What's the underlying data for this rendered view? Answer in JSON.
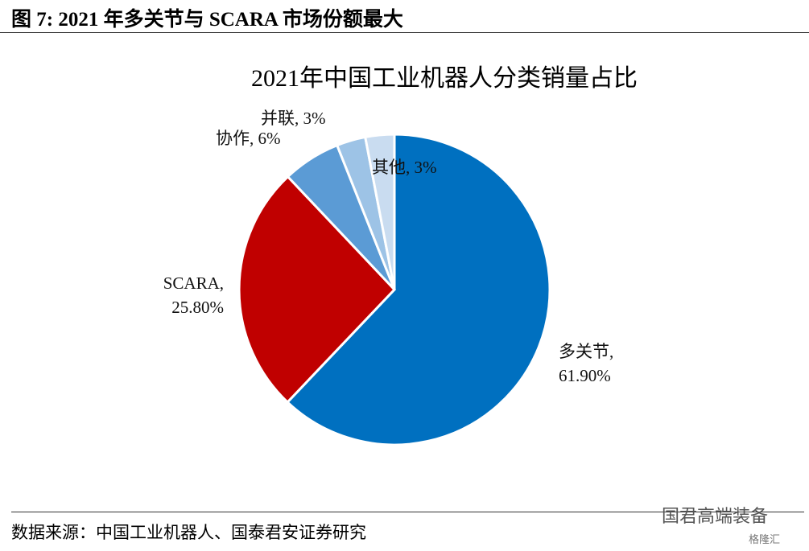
{
  "figure_title": "图 7:  2021 年多关节与 SCARA 市场份额最大",
  "source": "数据来源：中国工业机器人、国泰君安证券研究",
  "watermark": "国君高端装备",
  "watermark_logo": "格隆汇",
  "chart_data": {
    "type": "pie",
    "title": "2021年中国工业机器人分类销量占比",
    "values": [
      61.9,
      25.8,
      6,
      3,
      3
    ],
    "value_labels": [
      "多关节, 61.90%",
      "SCARA, 25.80%",
      "协作, 6%",
      "并联, 3%",
      "其他, 3%"
    ],
    "colors": [
      "#0070c0",
      "#c00000",
      "#5b9bd5",
      "#9dc3e6",
      "#c9dcf0"
    ],
    "start_angle": 0,
    "direction": "clockwise"
  }
}
